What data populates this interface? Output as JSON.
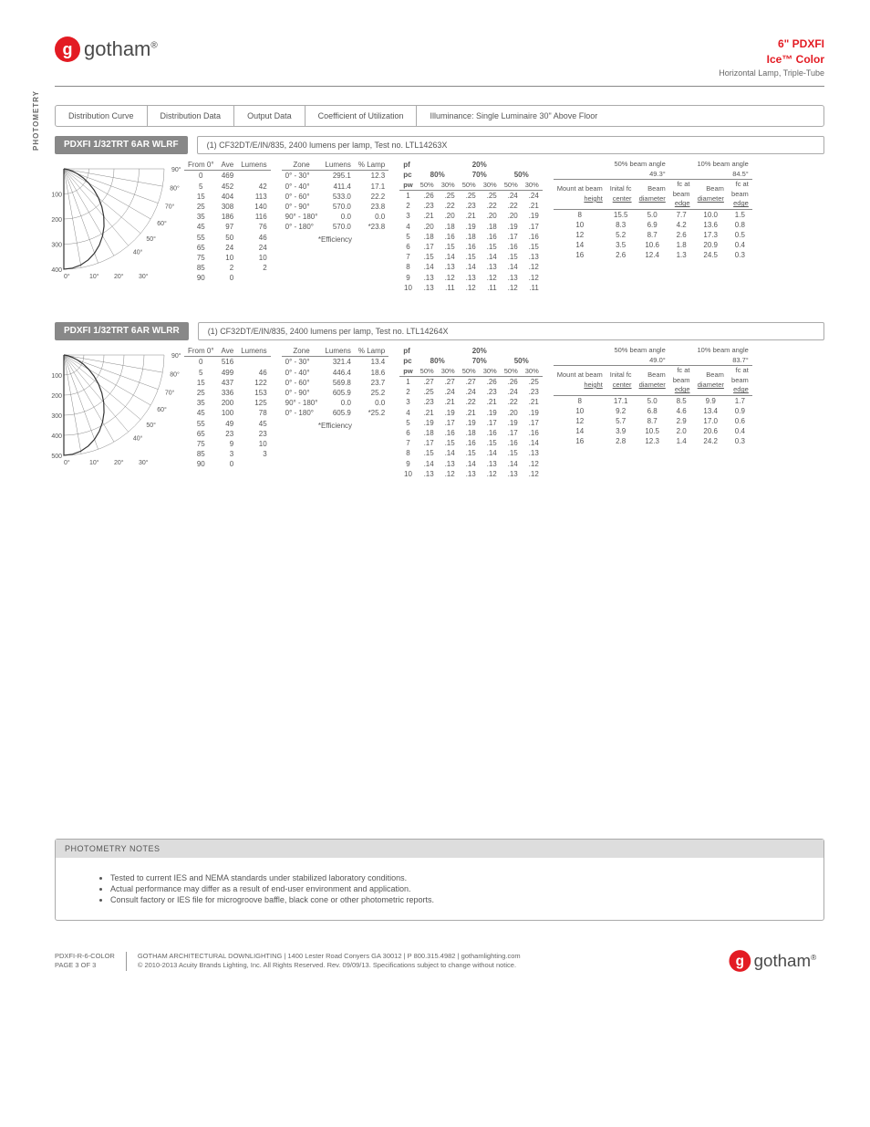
{
  "brand": {
    "name": "gotham",
    "symbol": "®",
    "icon_glyph": "g",
    "icon_bg": "#e31b23"
  },
  "header": {
    "line1": "6\" PDXFI",
    "line2": "Ice™ Color",
    "line3": "Horizontal Lamp, Triple-Tube"
  },
  "side_label": "PHOTOMETRY",
  "tabs": [
    "Distribution Curve",
    "Distribution Data",
    "Output Data",
    "Coefficient of Utilization",
    "Illuminance: Single Luminaire 30\" Above Floor"
  ],
  "sections": [
    {
      "model": "PDXFI 1/32TRT 6AR WLRF",
      "desc": "(1) CF32DT/E/IN/835, 2400 lumens per lamp, Test no. LTL14263X",
      "curve": {
        "rings": [
          100,
          200,
          300,
          400
        ],
        "max_ring": 400
      },
      "dist": {
        "headers": [
          "From 0°",
          "Ave",
          "Lumens"
        ],
        "rows": [
          [
            "0",
            "469",
            ""
          ],
          [
            "5",
            "452",
            "42"
          ],
          [
            "15",
            "404",
            "113"
          ],
          [
            "25",
            "308",
            "140"
          ],
          [
            "35",
            "186",
            "116"
          ],
          [
            "45",
            "97",
            "76"
          ],
          [
            "55",
            "50",
            "46"
          ],
          [
            "65",
            "24",
            "24"
          ],
          [
            "75",
            "10",
            "10"
          ],
          [
            "85",
            "2",
            "2"
          ],
          [
            "90",
            "0",
            ""
          ]
        ]
      },
      "output": {
        "headers": [
          "Zone",
          "Lumens",
          "% Lamp"
        ],
        "rows": [
          [
            "0° - 30°",
            "295.1",
            "12.3"
          ],
          [
            "0° - 40°",
            "411.4",
            "17.1"
          ],
          [
            "0° - 60°",
            "533.0",
            "22.2"
          ],
          [
            "0° - 90°",
            "570.0",
            "23.8"
          ],
          [
            "90° - 180°",
            "0.0",
            "0.0"
          ],
          [
            "0° - 180°",
            "570.0",
            "*23.8"
          ]
        ],
        "note": "*Efficiency"
      },
      "coef": {
        "pf_labels": [
          "pf",
          "pc",
          "pw"
        ],
        "pf_vals": [
          "20%",
          "80%",
          "70%",
          "50%"
        ],
        "sub": [
          "50%",
          "30%",
          "50%",
          "30%",
          "50%",
          "30%"
        ],
        "rows": [
          [
            "1",
            ".26",
            ".25",
            ".25",
            ".25",
            ".24",
            ".24"
          ],
          [
            "2",
            ".23",
            ".22",
            ".23",
            ".22",
            ".22",
            ".21"
          ],
          [
            "3",
            ".21",
            ".20",
            ".21",
            ".20",
            ".20",
            ".19"
          ],
          [
            "4",
            ".20",
            ".18",
            ".19",
            ".18",
            ".19",
            ".17"
          ],
          [
            "5",
            ".18",
            ".16",
            ".18",
            ".16",
            ".17",
            ".16"
          ],
          [
            "6",
            ".17",
            ".15",
            ".16",
            ".15",
            ".16",
            ".15"
          ],
          [
            "7",
            ".15",
            ".14",
            ".15",
            ".14",
            ".15",
            ".13"
          ],
          [
            "8",
            ".14",
            ".13",
            ".14",
            ".13",
            ".14",
            ".12"
          ],
          [
            "9",
            ".13",
            ".12",
            ".13",
            ".12",
            ".13",
            ".12"
          ],
          [
            "10",
            ".13",
            ".11",
            ".12",
            ".11",
            ".12",
            ".11"
          ]
        ]
      },
      "illum": {
        "a50": "49.3°",
        "a10": "84.5°",
        "headers": [
          "Mount at beam height",
          "Inital fc center",
          "Beam diameter",
          "fc at beam edge",
          "Beam diameter",
          "fc at beam edge"
        ],
        "rows": [
          [
            "8",
            "15.5",
            "5.0",
            "7.7",
            "10.0",
            "1.5"
          ],
          [
            "10",
            "8.3",
            "6.9",
            "4.2",
            "13.6",
            "0.8"
          ],
          [
            "12",
            "5.2",
            "8.7",
            "2.6",
            "17.3",
            "0.5"
          ],
          [
            "14",
            "3.5",
            "10.6",
            "1.8",
            "20.9",
            "0.4"
          ],
          [
            "16",
            "2.6",
            "12.4",
            "1.3",
            "24.5",
            "0.3"
          ]
        ]
      }
    },
    {
      "model": "PDXFI 1/32TRT 6AR WLRR",
      "desc": "(1) CF32DT/E/IN/835, 2400 lumens per lamp, Test no. LTL14264X",
      "curve": {
        "rings": [
          100,
          200,
          300,
          400,
          500
        ],
        "max_ring": 500
      },
      "dist": {
        "headers": [
          "From 0°",
          "Ave",
          "Lumens"
        ],
        "rows": [
          [
            "0",
            "516",
            ""
          ],
          [
            "5",
            "499",
            "46"
          ],
          [
            "15",
            "437",
            "122"
          ],
          [
            "25",
            "336",
            "153"
          ],
          [
            "35",
            "200",
            "125"
          ],
          [
            "45",
            "100",
            "78"
          ],
          [
            "55",
            "49",
            "45"
          ],
          [
            "65",
            "23",
            "23"
          ],
          [
            "75",
            "9",
            "10"
          ],
          [
            "85",
            "3",
            "3"
          ],
          [
            "90",
            "0",
            ""
          ]
        ]
      },
      "output": {
        "headers": [
          "Zone",
          "Lumens",
          "% Lamp"
        ],
        "rows": [
          [
            "0° - 30°",
            "321.4",
            "13.4"
          ],
          [
            "0° - 40°",
            "446.4",
            "18.6"
          ],
          [
            "0° - 60°",
            "569.8",
            "23.7"
          ],
          [
            "0° - 90°",
            "605.9",
            "25.2"
          ],
          [
            "90° - 180°",
            "0.0",
            "0.0"
          ],
          [
            "0° - 180°",
            "605.9",
            "*25.2"
          ]
        ],
        "note": "*Efficiency"
      },
      "coef": {
        "rows": [
          [
            "1",
            ".27",
            ".27",
            ".27",
            ".26",
            ".26",
            ".25"
          ],
          [
            "2",
            ".25",
            ".24",
            ".24",
            ".23",
            ".24",
            ".23"
          ],
          [
            "3",
            ".23",
            ".21",
            ".22",
            ".21",
            ".22",
            ".21"
          ],
          [
            "4",
            ".21",
            ".19",
            ".21",
            ".19",
            ".20",
            ".19"
          ],
          [
            "5",
            ".19",
            ".17",
            ".19",
            ".17",
            ".19",
            ".17"
          ],
          [
            "6",
            ".18",
            ".16",
            ".18",
            ".16",
            ".17",
            ".16"
          ],
          [
            "7",
            ".17",
            ".15",
            ".16",
            ".15",
            ".16",
            ".14"
          ],
          [
            "8",
            ".15",
            ".14",
            ".15",
            ".14",
            ".15",
            ".13"
          ],
          [
            "9",
            ".14",
            ".13",
            ".14",
            ".13",
            ".14",
            ".12"
          ],
          [
            "10",
            ".13",
            ".12",
            ".13",
            ".12",
            ".13",
            ".12"
          ]
        ]
      },
      "illum": {
        "a50": "49.0°",
        "a10": "83.7°",
        "rows": [
          [
            "8",
            "17.1",
            "5.0",
            "8.5",
            "9.9",
            "1.7"
          ],
          [
            "10",
            "9.2",
            "6.8",
            "4.6",
            "13.4",
            "0.9"
          ],
          [
            "12",
            "5.7",
            "8.7",
            "2.9",
            "17.0",
            "0.6"
          ],
          [
            "14",
            "3.9",
            "10.5",
            "2.0",
            "20.6",
            "0.4"
          ],
          [
            "16",
            "2.8",
            "12.3",
            "1.4",
            "24.2",
            "0.3"
          ]
        ]
      }
    }
  ],
  "notes": {
    "title": "PHOTOMETRY NOTES",
    "items": [
      "Tested to current IES and NEMA standards under stabilized laboratory conditions.",
      "Actual performance may differ as a result of end-user environment and application.",
      "Consult factory or IES file for microgroove baffle, black cone or other photometric reports."
    ]
  },
  "footer": {
    "id1": "PDXFI-R-6-COLOR",
    "id2": "PAGE 3 OF 3",
    "line1": "GOTHAM ARCHITECTURAL DOWNLIGHTING  |  1400 Lester Road Conyers GA 30012  |  P 800.315.4982  |  gothamlighting.com",
    "line2": "© 2010-2013 Acuity Brands Lighting, Inc. All Rights Reserved. Rev. 09/09/13. Specifications subject to change without notice."
  }
}
